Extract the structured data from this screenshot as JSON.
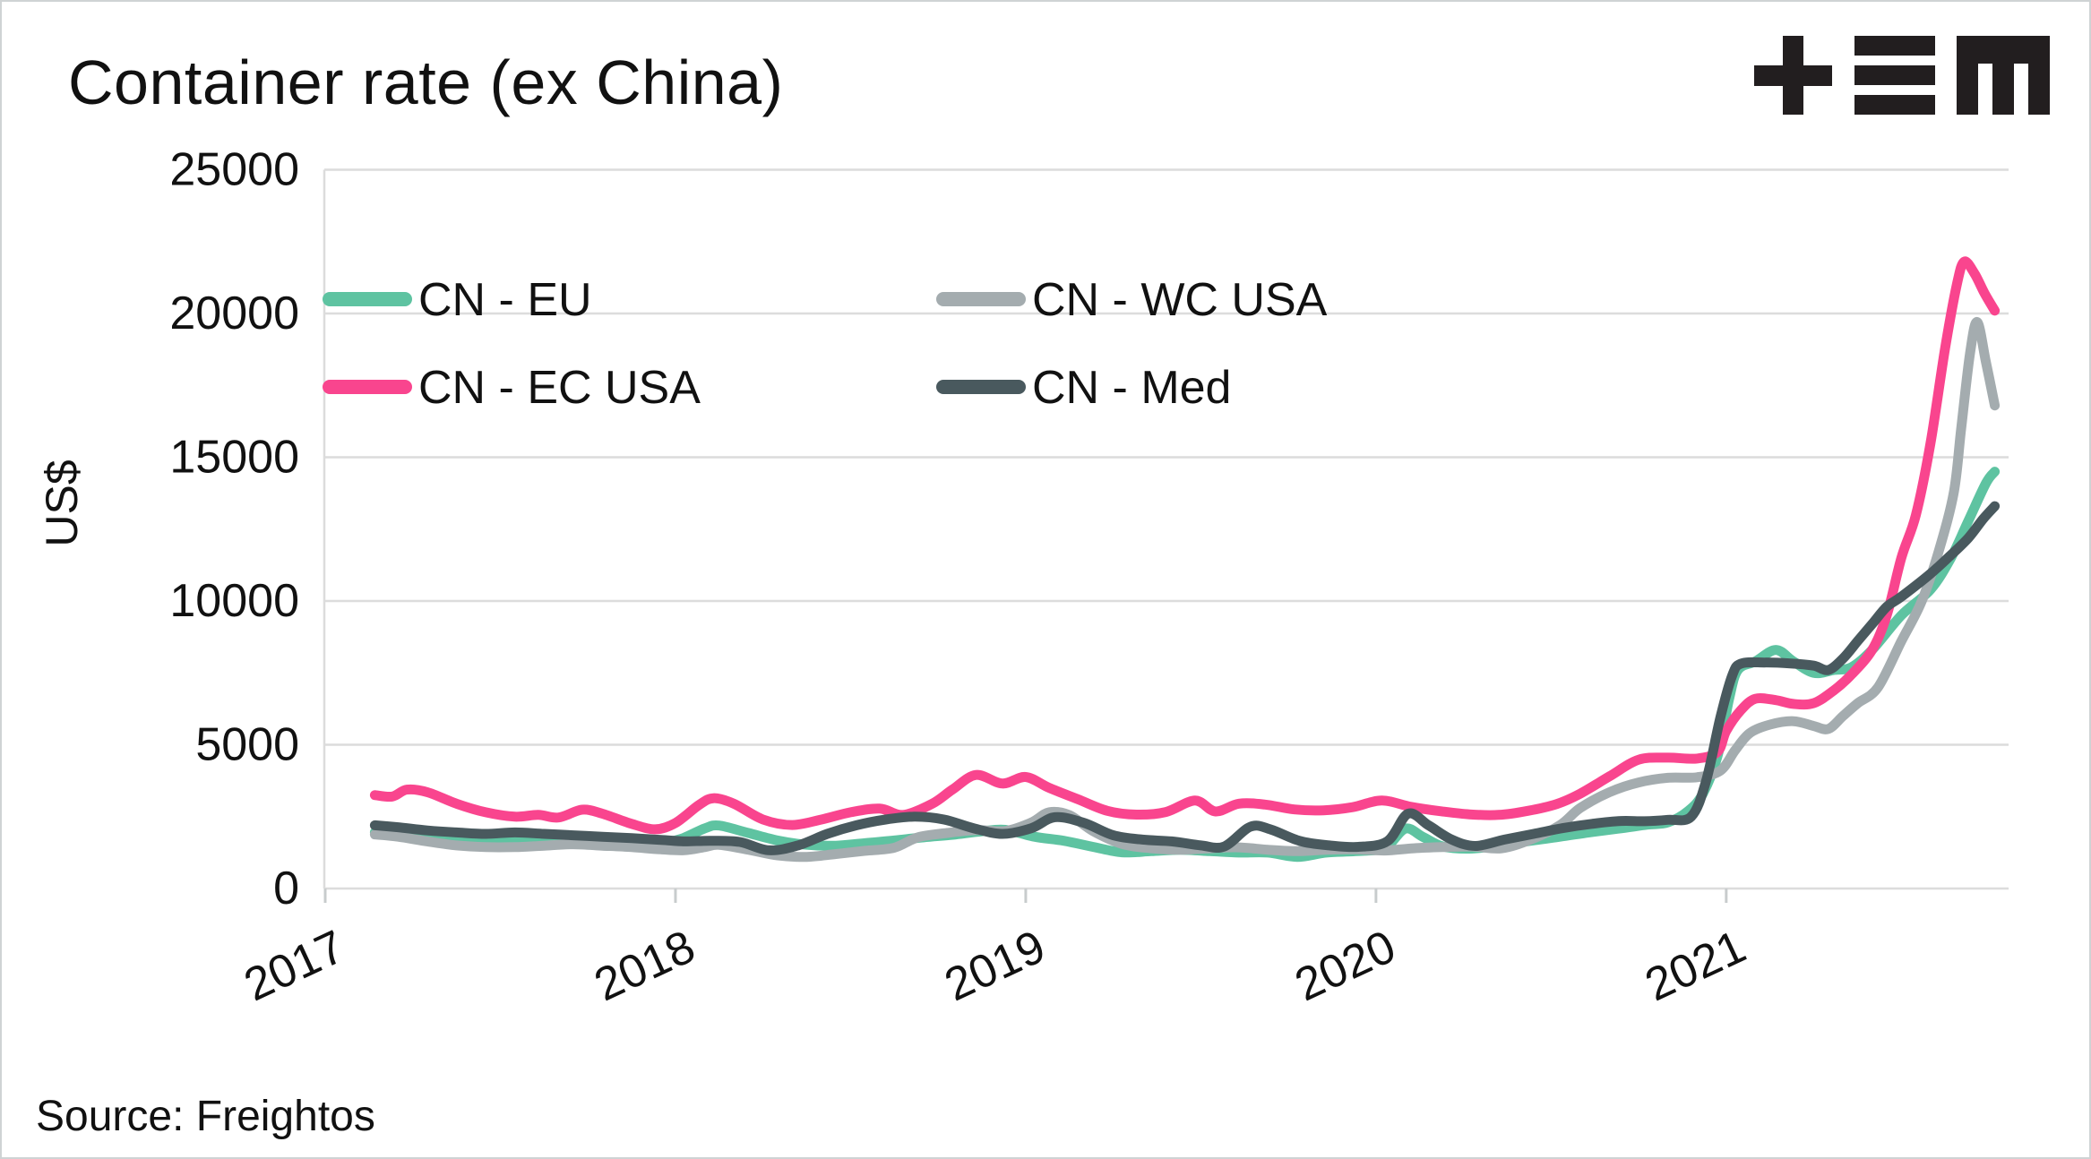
{
  "title": "Container rate (ex China)",
  "source": "Source: Freightos",
  "logo": {
    "glyphs": [
      "plus",
      "triple-bar",
      "m"
    ],
    "color": "#221e1f"
  },
  "colors": {
    "background": "#ffffff",
    "text": "#111111",
    "gridline": "#dcdcdc",
    "tick": "#c8cccd",
    "cn_eu": "#5ec3a1",
    "cn_wc_usa": "#a4acaf",
    "cn_ec_usa": "#f9458e",
    "cn_med": "#49595e"
  },
  "chart_data": {
    "type": "line",
    "title": "Container rate (ex China)",
    "xlabel": "",
    "ylabel": "US$",
    "x_tick_labels": [
      "2017",
      "2018",
      "2019",
      "2020",
      "2021"
    ],
    "y_tick_labels": [
      "0",
      "5000",
      "10000",
      "15000",
      "20000",
      "25000"
    ],
    "ylim": [
      0,
      25000
    ],
    "grid": "horizontal",
    "legend_position": "upper-left-inside",
    "x_unit": "months_since_jan_2017",
    "legend": [
      {
        "label": "CN - EU",
        "color_key": "cn_eu"
      },
      {
        "label": "CN - WC USA",
        "color_key": "cn_wc_usa"
      },
      {
        "label": "CN - EC USA",
        "color_key": "cn_ec_usa"
      },
      {
        "label": "CN - Med",
        "color_key": "cn_med"
      }
    ],
    "series": [
      {
        "name": "CN - EU",
        "color_key": "cn_eu",
        "points": [
          [
            1.7,
            1950
          ],
          [
            2.5,
            1870
          ],
          [
            3.5,
            1750
          ],
          [
            4.5,
            1640
          ],
          [
            5.5,
            1590
          ],
          [
            6.5,
            1640
          ],
          [
            7.5,
            1700
          ],
          [
            8.5,
            1750
          ],
          [
            9.5,
            1690
          ],
          [
            10.5,
            1640
          ],
          [
            11.5,
            1600
          ],
          [
            12.2,
            1730
          ],
          [
            13,
            2090
          ],
          [
            13.5,
            2190
          ],
          [
            14.5,
            1930
          ],
          [
            15.5,
            1670
          ],
          [
            16.5,
            1520
          ],
          [
            17.5,
            1490
          ],
          [
            18.5,
            1580
          ],
          [
            19.5,
            1670
          ],
          [
            20.5,
            1780
          ],
          [
            21.5,
            1870
          ],
          [
            22.5,
            1990
          ],
          [
            23.3,
            2040
          ],
          [
            24.3,
            1800
          ],
          [
            25.3,
            1660
          ],
          [
            26.3,
            1450
          ],
          [
            27.3,
            1260
          ],
          [
            28.3,
            1300
          ],
          [
            29.3,
            1350
          ],
          [
            30.3,
            1300
          ],
          [
            31.3,
            1250
          ],
          [
            32.3,
            1250
          ],
          [
            33.3,
            1100
          ],
          [
            34.3,
            1250
          ],
          [
            35.3,
            1300
          ],
          [
            36.3,
            1420
          ],
          [
            37,
            2080
          ],
          [
            37.6,
            1800
          ],
          [
            38.3,
            1460
          ],
          [
            39.3,
            1390
          ],
          [
            40.3,
            1520
          ],
          [
            41.3,
            1660
          ],
          [
            42.3,
            1800
          ],
          [
            43.3,
            1950
          ],
          [
            44.3,
            2080
          ],
          [
            45.3,
            2220
          ],
          [
            46,
            2300
          ],
          [
            46.7,
            2700
          ],
          [
            47.2,
            3300
          ],
          [
            47.7,
            4600
          ],
          [
            48.1,
            6600
          ],
          [
            48.4,
            7600
          ],
          [
            49,
            7900
          ],
          [
            49.7,
            8300
          ],
          [
            50.3,
            7900
          ],
          [
            51,
            7500
          ],
          [
            51.7,
            7600
          ],
          [
            52.3,
            7700
          ],
          [
            53,
            8300
          ],
          [
            54,
            9500
          ],
          [
            55,
            10400
          ],
          [
            55.7,
            11500
          ],
          [
            56.3,
            12800
          ],
          [
            56.9,
            14100
          ],
          [
            57.2,
            14500
          ]
        ]
      },
      {
        "name": "CN - WC USA",
        "color_key": "cn_wc_usa",
        "points": [
          [
            1.7,
            1880
          ],
          [
            2.5,
            1800
          ],
          [
            3.5,
            1640
          ],
          [
            4.5,
            1500
          ],
          [
            5.5,
            1440
          ],
          [
            6.5,
            1440
          ],
          [
            7.5,
            1490
          ],
          [
            8.5,
            1540
          ],
          [
            9.5,
            1490
          ],
          [
            10.5,
            1440
          ],
          [
            11.5,
            1360
          ],
          [
            12.3,
            1330
          ],
          [
            13,
            1440
          ],
          [
            13.5,
            1520
          ],
          [
            14.5,
            1350
          ],
          [
            15.5,
            1150
          ],
          [
            16.5,
            1100
          ],
          [
            17.5,
            1200
          ],
          [
            18.5,
            1310
          ],
          [
            19.5,
            1420
          ],
          [
            20.3,
            1780
          ],
          [
            21.3,
            1930
          ],
          [
            22.3,
            2030
          ],
          [
            23.3,
            2000
          ],
          [
            24.2,
            2300
          ],
          [
            24.8,
            2650
          ],
          [
            25.5,
            2550
          ],
          [
            26.3,
            2000
          ],
          [
            27.3,
            1550
          ],
          [
            28.3,
            1400
          ],
          [
            29.3,
            1350
          ],
          [
            30.3,
            1400
          ],
          [
            31.3,
            1430
          ],
          [
            32.3,
            1350
          ],
          [
            33.3,
            1300
          ],
          [
            34.3,
            1350
          ],
          [
            35.3,
            1360
          ],
          [
            36.3,
            1320
          ],
          [
            37.3,
            1400
          ],
          [
            38.3,
            1440
          ],
          [
            39.3,
            1460
          ],
          [
            40.3,
            1400
          ],
          [
            41.3,
            1700
          ],
          [
            42.3,
            2200
          ],
          [
            43,
            2800
          ],
          [
            44,
            3350
          ],
          [
            45,
            3690
          ],
          [
            46,
            3850
          ],
          [
            47,
            3870
          ],
          [
            47.8,
            4100
          ],
          [
            48.3,
            4800
          ],
          [
            48.8,
            5400
          ],
          [
            49.5,
            5700
          ],
          [
            50.3,
            5820
          ],
          [
            51,
            5650
          ],
          [
            51.5,
            5550
          ],
          [
            52,
            6000
          ],
          [
            52.5,
            6440
          ],
          [
            53.2,
            7000
          ],
          [
            54,
            8600
          ],
          [
            54.7,
            10000
          ],
          [
            55.3,
            11800
          ],
          [
            55.8,
            13800
          ],
          [
            56.05,
            16000
          ],
          [
            56.35,
            18600
          ],
          [
            56.6,
            19700
          ],
          [
            56.9,
            18300
          ],
          [
            57.2,
            16800
          ]
        ]
      },
      {
        "name": "CN - EC USA",
        "color_key": "cn_ec_usa",
        "points": [
          [
            1.7,
            3250
          ],
          [
            2.3,
            3200
          ],
          [
            2.8,
            3440
          ],
          [
            3.5,
            3350
          ],
          [
            4.5,
            2950
          ],
          [
            5.5,
            2650
          ],
          [
            6.5,
            2500
          ],
          [
            7.3,
            2560
          ],
          [
            8,
            2470
          ],
          [
            8.8,
            2740
          ],
          [
            9.5,
            2600
          ],
          [
            10.5,
            2250
          ],
          [
            11.3,
            2060
          ],
          [
            12,
            2280
          ],
          [
            12.8,
            2900
          ],
          [
            13.3,
            3140
          ],
          [
            14,
            2950
          ],
          [
            15,
            2400
          ],
          [
            16,
            2210
          ],
          [
            17,
            2400
          ],
          [
            18,
            2650
          ],
          [
            19,
            2780
          ],
          [
            19.8,
            2560
          ],
          [
            20.8,
            2950
          ],
          [
            21.5,
            3450
          ],
          [
            22.3,
            3950
          ],
          [
            23.2,
            3650
          ],
          [
            24,
            3880
          ],
          [
            24.8,
            3500
          ],
          [
            25.8,
            3100
          ],
          [
            26.8,
            2700
          ],
          [
            27.8,
            2570
          ],
          [
            28.8,
            2660
          ],
          [
            29.8,
            3060
          ],
          [
            30.5,
            2680
          ],
          [
            31.3,
            2950
          ],
          [
            32.2,
            2920
          ],
          [
            33.2,
            2750
          ],
          [
            34.2,
            2720
          ],
          [
            35.2,
            2830
          ],
          [
            36.2,
            3060
          ],
          [
            37.2,
            2840
          ],
          [
            38.2,
            2690
          ],
          [
            39.2,
            2580
          ],
          [
            40.2,
            2560
          ],
          [
            41.2,
            2700
          ],
          [
            42.2,
            2940
          ],
          [
            43,
            3300
          ],
          [
            44,
            3900
          ],
          [
            45,
            4480
          ],
          [
            46,
            4550
          ],
          [
            47,
            4520
          ],
          [
            47.7,
            4750
          ],
          [
            48,
            5480
          ],
          [
            48.5,
            6200
          ],
          [
            49,
            6600
          ],
          [
            49.7,
            6550
          ],
          [
            50.3,
            6420
          ],
          [
            51,
            6450
          ],
          [
            51.7,
            6900
          ],
          [
            52.3,
            7450
          ],
          [
            53,
            8300
          ],
          [
            53.5,
            9500
          ],
          [
            54,
            11500
          ],
          [
            54.5,
            13000
          ],
          [
            55,
            15500
          ],
          [
            55.5,
            18800
          ],
          [
            55.9,
            21000
          ],
          [
            56.15,
            21800
          ],
          [
            56.5,
            21400
          ],
          [
            56.85,
            20700
          ],
          [
            57.2,
            20100
          ]
        ]
      },
      {
        "name": "CN - Med",
        "color_key": "cn_med",
        "points": [
          [
            1.7,
            2200
          ],
          [
            2.5,
            2130
          ],
          [
            3.5,
            2020
          ],
          [
            4.5,
            1950
          ],
          [
            5.5,
            1900
          ],
          [
            6.5,
            1950
          ],
          [
            7.5,
            1900
          ],
          [
            8.5,
            1850
          ],
          [
            9.5,
            1800
          ],
          [
            10.5,
            1750
          ],
          [
            11.5,
            1690
          ],
          [
            12.3,
            1640
          ],
          [
            13.2,
            1660
          ],
          [
            14.2,
            1620
          ],
          [
            15.2,
            1330
          ],
          [
            16.2,
            1500
          ],
          [
            17.2,
            1900
          ],
          [
            18.2,
            2200
          ],
          [
            19.2,
            2400
          ],
          [
            20.2,
            2500
          ],
          [
            21.2,
            2400
          ],
          [
            22.2,
            2100
          ],
          [
            23.2,
            1900
          ],
          [
            24.2,
            2100
          ],
          [
            25,
            2480
          ],
          [
            26,
            2280
          ],
          [
            27,
            1850
          ],
          [
            28,
            1700
          ],
          [
            29,
            1640
          ],
          [
            30,
            1500
          ],
          [
            30.8,
            1460
          ],
          [
            31.7,
            2150
          ],
          [
            32.4,
            2050
          ],
          [
            33.4,
            1650
          ],
          [
            34.4,
            1500
          ],
          [
            35.4,
            1450
          ],
          [
            36.4,
            1650
          ],
          [
            37.1,
            2600
          ],
          [
            37.8,
            2200
          ],
          [
            38.6,
            1700
          ],
          [
            39.4,
            1480
          ],
          [
            40.4,
            1700
          ],
          [
            41.4,
            1900
          ],
          [
            42.4,
            2100
          ],
          [
            43.4,
            2250
          ],
          [
            44.4,
            2350
          ],
          [
            45.2,
            2340
          ],
          [
            46,
            2390
          ],
          [
            46.8,
            2500
          ],
          [
            47.3,
            3700
          ],
          [
            47.8,
            5950
          ],
          [
            48.2,
            7400
          ],
          [
            48.5,
            7820
          ],
          [
            49.3,
            7860
          ],
          [
            50.2,
            7830
          ],
          [
            51,
            7750
          ],
          [
            51.5,
            7600
          ],
          [
            52,
            8000
          ],
          [
            52.5,
            8600
          ],
          [
            53,
            9200
          ],
          [
            53.5,
            9800
          ],
          [
            54,
            10150
          ],
          [
            55,
            10950
          ],
          [
            55.7,
            11600
          ],
          [
            56.3,
            12200
          ],
          [
            56.8,
            12850
          ],
          [
            57.2,
            13300
          ]
        ]
      }
    ]
  }
}
